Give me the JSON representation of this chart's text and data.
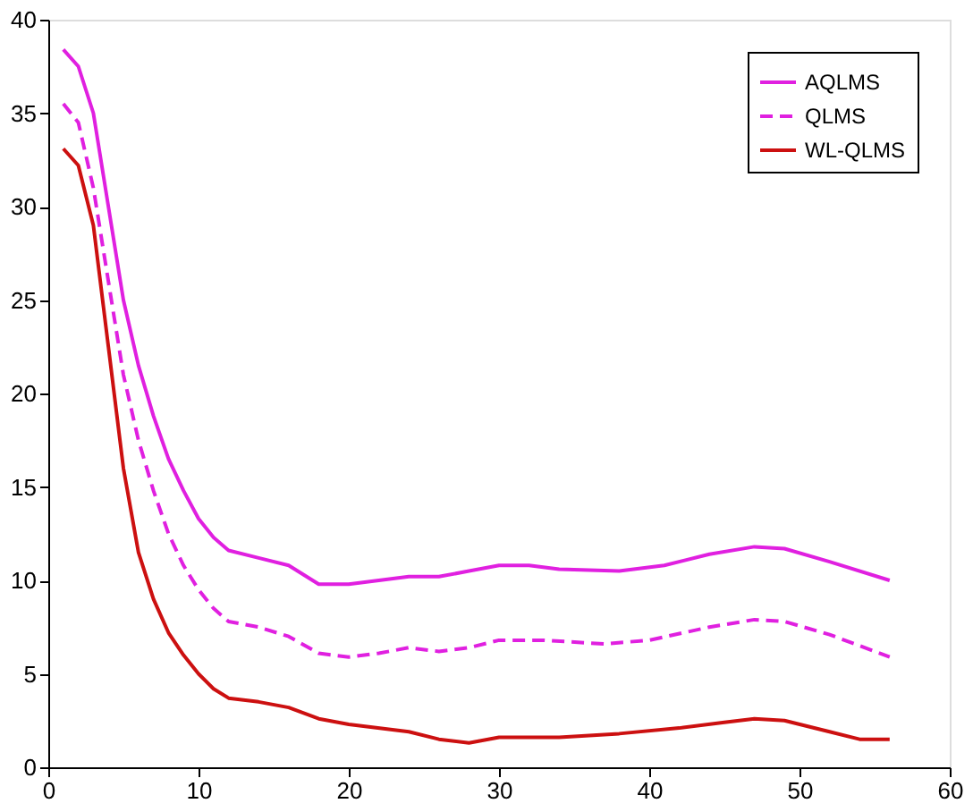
{
  "chart_data": {
    "type": "line",
    "xlim": [
      0,
      60
    ],
    "xticks": [
      0,
      10,
      20,
      30,
      40,
      50,
      60
    ],
    "ylim": [
      0,
      40
    ],
    "yticks": [
      0,
      5,
      10,
      15,
      20,
      25,
      30,
      35,
      40
    ],
    "grid": false,
    "legend": "top right",
    "marker": "none",
    "series": [
      {
        "name": "AQLMS",
        "color": "#e020e0",
        "line_style": "solid",
        "x": [
          1,
          2,
          3,
          4,
          5,
          6,
          7,
          8,
          9,
          10,
          11,
          12,
          14,
          16,
          18,
          20,
          22,
          24,
          26,
          28,
          30,
          32,
          34,
          38,
          41,
          44,
          47,
          49,
          52,
          56
        ],
        "values": [
          38.4,
          37.5,
          35,
          30,
          25,
          21.5,
          18.8,
          16.5,
          14.8,
          13.3,
          12.3,
          11.6,
          11.2,
          10.8,
          9.8,
          9.8,
          10,
          10.2,
          10.2,
          10.5,
          10.8,
          10.8,
          10.6,
          10.5,
          10.8,
          11.4,
          11.8,
          11.7,
          11,
          10
        ]
      },
      {
        "name": "QLMS",
        "color": "#e020e0",
        "line_style": "dashed",
        "x": [
          1,
          2,
          3,
          4,
          5,
          6,
          7,
          8,
          9,
          10,
          11,
          12,
          14,
          16,
          18,
          20,
          22,
          24,
          26,
          28,
          30,
          33,
          37,
          40,
          44,
          47,
          49,
          52,
          56
        ],
        "values": [
          35.5,
          34.5,
          31,
          26,
          21,
          17.5,
          14.8,
          12.5,
          10.8,
          9.5,
          8.5,
          7.8,
          7.5,
          7,
          6.1,
          5.9,
          6.1,
          6.4,
          6.2,
          6.4,
          6.8,
          6.8,
          6.6,
          6.8,
          7.5,
          7.9,
          7.8,
          7.1,
          5.9
        ]
      },
      {
        "name": "WL-QLMS",
        "color": "#cc1010",
        "line_style": "solid",
        "x": [
          1,
          2,
          3,
          4,
          5,
          6,
          7,
          8,
          9,
          10,
          11,
          12,
          14,
          16,
          18,
          20,
          24,
          26,
          28,
          30,
          34,
          38,
          42,
          45,
          47,
          49,
          52,
          54,
          56
        ],
        "values": [
          33.1,
          32.2,
          29,
          22.5,
          16,
          11.5,
          9,
          7.2,
          6,
          5,
          4.2,
          3.7,
          3.5,
          3.2,
          2.6,
          2.3,
          1.9,
          1.5,
          1.3,
          1.6,
          1.6,
          1.8,
          2.1,
          2.4,
          2.6,
          2.5,
          1.9,
          1.5,
          1.5
        ]
      }
    ]
  }
}
